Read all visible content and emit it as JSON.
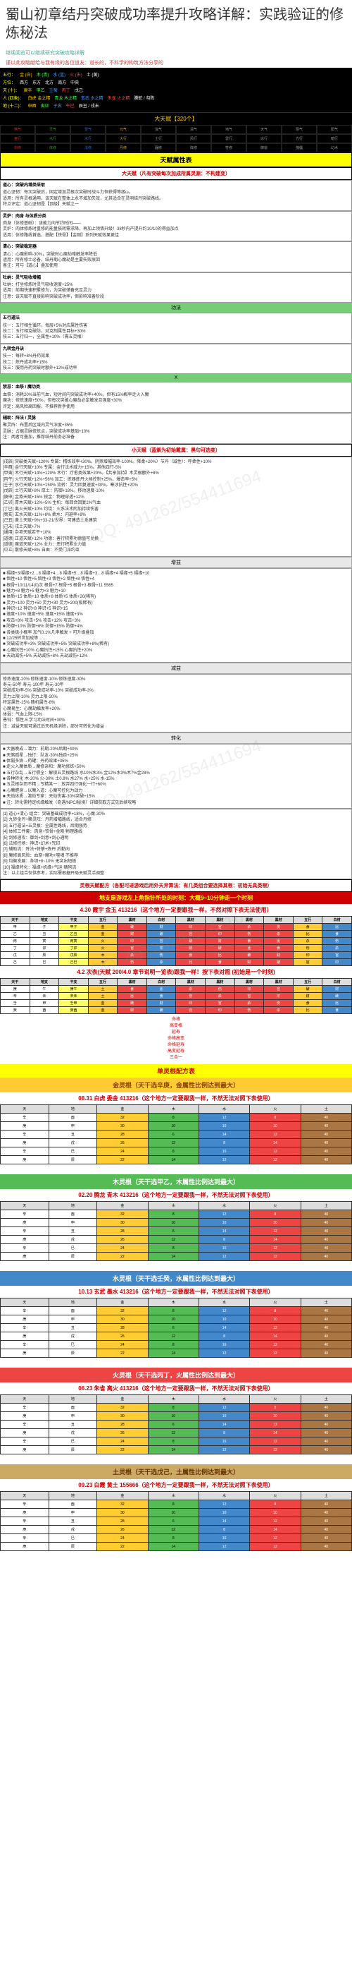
{
  "page": {
    "title": "蜀山初章结丹突破成功率提升攻略详解：实践验证的修炼秘法",
    "sub_link": "继续阅览可以继续研究突破攻略详解",
    "sub_note": "谨以此攻略献给与我有缘的各位道友：道长的，不科学的构筑方法分享的"
  },
  "char_header": {
    "rows": [
      {
        "label": "五行",
        "vals": [
          "金 (白)",
          "木 (青)",
          "水 (蓝)",
          "火 (朱)",
          "土 (黄)"
        ],
        "colors": [
          "gold",
          "green",
          "blue",
          "red",
          "white"
        ]
      },
      {
        "label": "方位",
        "vals": [
          "西方",
          "东方",
          "北方",
          "南方",
          "中央"
        ],
        "colors": [
          "white",
          "white",
          "white",
          "white",
          "white"
        ]
      },
      {
        "label": "天 (十)",
        "vals": [
          "庚辛",
          "甲乙",
          "壬癸",
          "丙丁",
          "戊己"
        ],
        "colors": [
          "gold",
          "green",
          "blue",
          "red",
          "white"
        ]
      },
      {
        "label": "人 (四象)",
        "vals": [
          "白虎 金之精",
          "青龙 木之精",
          "玄武 水之精",
          "朱雀 火之精",
          "腾蛇 / 勾陈"
        ],
        "colors": [
          "gold",
          "green",
          "blue",
          "red",
          "white"
        ]
      },
      {
        "label": "地 (十二)",
        "vals": [
          "申酉",
          "寅卯",
          "子亥",
          "午巳",
          "辰丑 / 戌未"
        ],
        "colors": [
          "gold",
          "green",
          "blue",
          "red",
          "white"
        ]
      }
    ],
    "banner": "大天赋【320个】"
  },
  "color_strips": [
    {
      "cells": [
        "煞气",
        "灵气",
        "罡气",
        "元气",
        "浊气",
        "清气",
        "地气",
        "天气",
        "阴气",
        "阳气"
      ],
      "colors": [
        "red",
        "green",
        "blue",
        "gold",
        "white",
        "white",
        "white",
        "white",
        "white",
        "white"
      ]
    },
    {
      "cells": [
        "金行",
        "木行",
        "水行",
        "火行",
        "土行",
        "风行",
        "雷行",
        "冰行",
        "光行",
        "暗行"
      ],
      "colors": [
        "gold",
        "green",
        "blue",
        "red",
        "white",
        "white",
        "white",
        "white",
        "white",
        "white"
      ]
    },
    {
      "cells": [
        "剑修",
        "体修",
        "法修",
        "丹修",
        "器修",
        "阵修",
        "符修",
        "御兽",
        "傀儡",
        "幻术"
      ],
      "colors": [
        "red",
        "green",
        "blue",
        "gold",
        "white",
        "white",
        "white",
        "white",
        "white",
        "white"
      ]
    }
  ],
  "talent_section": {
    "head": "天赋属性表",
    "sub_head": "大天赋（凡有突破每次加成所属灵源：不构建变）",
    "blocks": [
      {
        "title": "道心：突破内增类采取",
        "lines": [
          "道心坚韧：每次突破后，固定增加灵根次突破时战斗力恒获得等级ω。",
          "适用：所有灵根通用，该天赋在整体上永不增加失效，尤其适合在灵明结丹突破路线。",
          "特点评定：道心坚韧是【顶级】天赋之一"
        ]
      },
      {
        "title": "灵炉：肉身 与体质分类",
        "lines": [
          "肉身（体修基础）：该能力向节约时间——",
          "灵炉：肉体修炼时重修的能量损耗需求降，再加上领悟升级！38秒内产提升约10/10的得益加点",
          "适用：体修路线首选，搭配【铁骨】【金刚】系列天赋效果更佳"
        ]
      },
      {
        "title": "清心：突破稳定器",
        "lines": [
          "清心：心魔影响-30%，突破时心魔劫难触发率降低",
          "适用：所有修士必备，结丹期心魔劫是主要失败原因",
          "备注：可与【道心】叠加使用"
        ]
      },
      {
        "title": "吐纳：灵气吸收增幅",
        "lines": [
          "吐纳：打坐修炼时灵气吸收速度+25%",
          "适用：前期快速积累修为，为突破储备充足灵力",
          "注意：该天赋不直接影响突破成功率，但影响准备阶段"
        ]
      }
    ],
    "skill_head": "功法",
    "skill_blocks": [
      {
        "title": "五行遁法",
        "lines": [
          "技一：五行相生循环，每层+5%对应属性伤害",
          "技二：五行相克破防，对克制属性目标+30%",
          "技三：五行归一，全属性+10%（需五灵根）"
        ]
      },
      {
        "title": "九转金丹诀",
        "lines": [
          "技一：每转+8%丹药效果",
          "技二：炼丹成功率+15%",
          "技三：服用丹药突破时额外+12%成功率"
        ]
      }
    ],
    "x_head": "X",
    "x_blocks": [
      {
        "title": "禁忌：血祭 / 魔功类",
        "lines": [
          "血祭：消耗20%当前气血，短时间内突破成功率+40%，但有15%概率走火入魔",
          "魔功：修炼速度+50%，但每次突破心魔劫必定触发且强度+30%",
          "评定：高风险高回报，不推荐新手使用"
        ]
      },
      {
        "title": "辅助：阵法 / 灵脉",
        "lines": [
          "聚灵阵：布置后区域内灵气浓度+35%",
          "灵脉：占据灵脉修炼点，突破成功率基础+10%",
          "注：两者可叠加，推荐结丹前务必准备"
        ]
      }
    ]
  },
  "small_talent": {
    "head": "小天赋（蓝紫为初始戴属：黑句可选变）",
    "lines": [
      "[戌辰] 突破类天赋+120% 专属：精炼效率+30%。阴煞增幅效率-100%。降柔+20%）节丹（减性）：呼柔性+10%",
      "[辛酉] 金行天赋+10% 专属：金行法术威力+15%。其他四行-5%",
      "[甲寅] 木行天赋+14%+120% 木行：疗愈类效果+20%。【共享加持】木灵根额外+8%",
      "[丙午] 火行天赋+12%+56% 加工：炼器炼丹火候控制+25%。爆击率+5%",
      "[壬子] 水行天赋+10%+150% 流转：灵力回复速度+30%。寒冰抗性+20%",
      "[戊辰] 土行天赋+8% 厚土：防御+18%。移动速度-10%",
      "[庚申] 金煞天赋+15% 锐金：物理穿透+12%",
      "[乙卯] 青木天赋+12%+5% 生机：每回合回复2%气血",
      "[丁巳] 离火天赋+10% 灼烧：火系法术附加持续伤害",
      "[癸亥] 玄水天赋+11%+8% 柔水：闪避率+8%",
      "[己丑] 黄土天赋+9%+33-21/世界：可建造土系建筑",
      "[己未] 戌土天赋+7%",
      "[通用] 杂项天赋若干+10%",
      "[道德] 正道天赋+12% 功德：善行积累功德值可兑换",
      "[道德] 魔道天赋+12% 业力：恶行积累业力值",
      "[中立] 散修天赋+8% 自由：不受门派约束"
    ],
    "increase_head": "增益",
    "increase_lines": [
      "■ 福缘+3/福缘+2…8 福缘+4…8 福缘+5…8 福缘+3…8 福缘+4 福缘+5 福缘+10",
      "■ 悟性+10 悟性+5 悟性+3 悟性+2 悟性+8 悟性+4",
      "■ 根骨+10/11/14(0)次 根骨+7 根骨+5 根骨+3 根骨+11 5565",
      "■ 魅力+8 魅力+5 魅力+3 魅力+10",
      "■ 体质+15 体质+10 体质+8 体质+5 体质+20(稀有)",
      "■ 灵力+100 灵力+50 灵力+30 灵力+200(极稀有)",
      "■ 神识+12 神识+8 神识+5 神识+15",
      "■ 速度+10% 速度+5% 速度+15% 速度+3%",
      "■ 攻击+8% 攻击+5% 攻击+12% 攻击+3%",
      "■ 防御+10% 防御+6% 防御+15% 防御+4%",
      "■ 各类极小概率 加气0.1%几率触发 + 可升级叠加",
      "■ 12/25转世加成等……",
      "■ 突破成功率+3% 突破成功率+5% 突破成功率+8%(稀有)",
      "■ 心魔抗性+10% 心魔抗性+15% 心魔抗性+20%",
      "■ 天劫减伤+5% 天劫减伤+8% 天劫减伤+12%"
    ],
    "decrease_head": "减益",
    "decrease_lines": [
      "修炼速度-20% 修炼速度-10% 修炼速度-30%",
      "寿元-50年 寿元-100年 寿元-30年",
      "突破成功率-5% 突破成功率-10% 突破成功率-3%",
      "灵力上限-10% 灵力上限-20%",
      "特定属性-15% 随机属性-8%",
      "心魔易生：心魔劫触发率+20%",
      "体弱：气血上限-15%",
      "愚钝：悟性-5 学习功法时间+30%",
      "注：减益天赋可通过后天机缘消除，部分可转化为增益"
    ],
    "convert_head": "转化",
    "convert_lines": [
      "■ 大器晚成→潜力：前期-20%后期+40%",
      "■ 天煞孤星→独行：队友-30%独自+25%",
      "■ 体弱多病→药罐：丹药效果+35%",
      "■ 走火入魔体质→魔修亲和：魔功修炼+50%",
      "■ 五行杂乱→五行俱全：解锁五灵根路线 水10%水3% 金12%水3%木7%金28%",
      "■ 各种转化 木-20% 火-30% 土0.8% 水27% 水+25% 水-15%",
      "■ 五灵根杂而不精→专精某一：放弃四行强化一行+60%",
      "■ 心魔缠身→以魔入道：心魔可控化为战力",
      "■ 天劫体质→渡劫专家：天劫伤害-30%突破+15%",
      "■ 注：转化需特定机缘触发（奇遇/NPC/秘境）详细获取方式见后续攻略"
    ]
  },
  "list_section": {
    "lines": [
      "[1] 道心+清心 组合：突破基础成功率+18%，心魔-30%",
      "[2] 九转金丹+聚灵阵：丹药增幅路线，适合丹修",
      "[3] 五行遁法+五灵根：全属性路线，后期强势",
      "[4] 体修三件套：肉身+铁骨+金刚 物理路线",
      "[5] 剑修速攻：御剑+剑意+剑心通明",
      "[6] 法修控场：神识+幻术+咒印",
      "[7] 辅助流：阵法+符箓+炼丹 后勤向",
      "[8] 魔修高风险：血祭+魔功+噬魂 不推荐",
      "[9] 均衡发展：各项+8~10% 无突出短板",
      "[10] 福缘特化：福缘+机缘+气运 赌狗流",
      "注：以上组合仅供参考，实际需根据开局天赋灵活调整"
    ]
  },
  "combo_section": {
    "head": "灵根天赋配方（各配可进游戏后用外天斧算法：有几类组合要选择其根：初始无具类根）",
    "banner": "地支是游戏左上角指针所处的时刻：大概9~10分钟走一个时刻",
    "sub1": "4.30 霞宇 金玉 413216（这个地方一定要跟我一样，不然对照下表无法使用）",
    "grid_headers": [
      "天干",
      "地支",
      "干支",
      "五行",
      "黑材",
      "白材",
      "黑材",
      "黑材",
      "黑材",
      "黑材",
      "五行",
      "白材"
    ],
    "grid1": [
      [
        "甲",
        "子",
        "甲子",
        "金",
        "破",
        "财",
        "印",
        "官",
        "杀",
        "伤",
        "食",
        "比"
      ],
      [
        "乙",
        "丑",
        "乙丑",
        "金",
        "财",
        "破",
        "官",
        "印",
        "伤",
        "杀",
        "比",
        "食"
      ],
      [
        "丙",
        "寅",
        "丙寅",
        "火",
        "印",
        "官",
        "破",
        "财",
        "食",
        "比",
        "杀",
        "伤"
      ],
      [
        "丁",
        "卯",
        "丁卯",
        "火",
        "官",
        "印",
        "财",
        "破",
        "比",
        "食",
        "伤",
        "杀"
      ],
      [
        "戊",
        "辰",
        "戊辰",
        "木",
        "杀",
        "伤",
        "食",
        "比",
        "破",
        "财",
        "印",
        "官"
      ],
      [
        "己",
        "巳",
        "己巳",
        "木",
        "伤",
        "杀",
        "比",
        "食",
        "财",
        "破",
        "官",
        "印"
      ]
    ],
    "sub2": "4.2 次表(天赋 200/4.0 章节说明一览表)跟我一样！按下表对照 (初始是一个时刻)",
    "grid2": [
      [
        "庚",
        "午",
        "庚午",
        "土",
        "食",
        "比",
        "杀",
        "伤",
        "印",
        "官",
        "破",
        "财"
      ],
      [
        "辛",
        "未",
        "辛未",
        "土",
        "比",
        "食",
        "伤",
        "杀",
        "官",
        "印",
        "财",
        "破"
      ],
      [
        "壬",
        "申",
        "壬申",
        "金",
        "破",
        "财",
        "印",
        "官",
        "杀",
        "伤",
        "食",
        "比"
      ],
      [
        "癸",
        "酉",
        "癸酉",
        "金",
        "财",
        "破",
        "官",
        "印",
        "伤",
        "杀",
        "比",
        "食"
      ]
    ],
    "small_list": [
      "命格",
      "高变格",
      "延寿",
      "命格高变",
      "命格延寿",
      "高变延寿",
      "三合一"
    ]
  },
  "single_root": {
    "head": "单灵根配方表",
    "elements": [
      {
        "key": "gold",
        "head": "金灵根（天干选辛庚，金属性比例达到最大）",
        "note": "08.31 白虎 委金 413216（这个地方一定要跟我一样，不然无法对照下表使用）"
      },
      {
        "key": "wood",
        "head": "木灵根（天干选甲乙，木属性比例达到最大）",
        "note": "02.20 腾龙 青木 413216（这个地方一定要跟我一样，不然无法对照下表使用）"
      },
      {
        "key": "water",
        "head": "水灵根（天干选壬癸，水属性比例达到最大）",
        "note": "10.13 玄武 墨水 413216（这个地方一定要跟我一样，不然无法对照下表使用）"
      },
      {
        "key": "fire",
        "head": "火灵根（天干选丙丁，火属性比例达到最大）",
        "note": "06.23 朱雀 离火 413216（这个地方一定要跟我一样，不然无法对照下表使用）"
      },
      {
        "key": "earth",
        "head": "土灵根（天干选戊己，土属性比例达到最大）",
        "note": "09.23 白霞 黄土 155666（这个地方一定要跟我一样，不然无法对照下表使用）"
      }
    ],
    "attr_headers": [
      "天",
      "地",
      "金",
      "木",
      "水",
      "火",
      "土"
    ],
    "attr_grid": [
      [
        "辛",
        "酉",
        "32",
        "8",
        "12",
        "8",
        "40"
      ],
      [
        "庚",
        "申",
        "30",
        "10",
        "10",
        "10",
        "40"
      ],
      [
        "辛",
        "丑",
        "28",
        "6",
        "14",
        "12",
        "40"
      ],
      [
        "庚",
        "戌",
        "26",
        "12",
        "8",
        "14",
        "40"
      ],
      [
        "辛",
        "巳",
        "24",
        "8",
        "16",
        "12",
        "40"
      ],
      [
        "庚",
        "辰",
        "22",
        "14",
        "12",
        "12",
        "40"
      ]
    ]
  },
  "watermark": "QQ: 491262/554411694"
}
